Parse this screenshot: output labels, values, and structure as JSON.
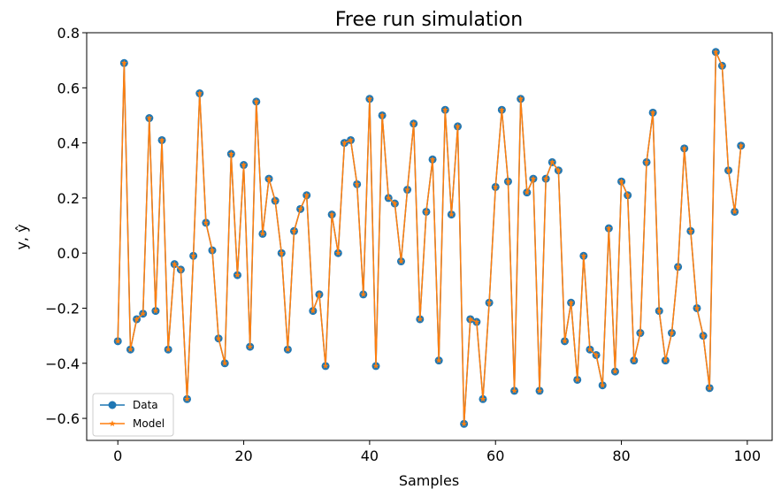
{
  "chart_data": {
    "type": "line",
    "title": "Free run simulation",
    "xlabel": "Samples",
    "ylabel": "y, ŷ",
    "xlim": [
      -4.95,
      103.95
    ],
    "ylim": [
      -0.68,
      0.8
    ],
    "xticks": [
      0,
      20,
      40,
      60,
      80,
      100
    ],
    "yticks": [
      -0.6,
      -0.4,
      -0.2,
      0.0,
      0.2,
      0.4,
      0.6,
      0.8
    ],
    "xtick_labels": [
      "0",
      "20",
      "40",
      "60",
      "80",
      "100"
    ],
    "ytick_labels": [
      "−0.6",
      "−0.4",
      "−0.2",
      "0.0",
      "0.2",
      "0.4",
      "0.6",
      "0.8"
    ],
    "grid": false,
    "legend_position": "lower-left",
    "x": [
      0,
      1,
      2,
      3,
      4,
      5,
      6,
      7,
      8,
      9,
      10,
      11,
      12,
      13,
      14,
      15,
      16,
      17,
      18,
      19,
      20,
      21,
      22,
      23,
      24,
      25,
      26,
      27,
      28,
      29,
      30,
      31,
      32,
      33,
      34,
      35,
      36,
      37,
      38,
      39,
      40,
      41,
      42,
      43,
      44,
      45,
      46,
      47,
      48,
      49,
      50,
      51,
      52,
      53,
      54,
      55,
      56,
      57,
      58,
      59,
      60,
      61,
      62,
      63,
      64,
      65,
      66,
      67,
      68,
      69,
      70,
      71,
      72,
      73,
      74,
      75,
      76,
      77,
      78,
      79,
      80,
      81,
      82,
      83,
      84,
      85,
      86,
      87,
      88,
      89,
      90,
      91,
      92,
      93,
      94,
      95,
      96,
      97,
      98,
      99
    ],
    "series": [
      {
        "name": "Data",
        "color": "#1f77b4",
        "marker": "circle",
        "values": [
          -0.32,
          0.69,
          -0.35,
          -0.24,
          -0.22,
          0.49,
          -0.21,
          0.41,
          -0.35,
          -0.04,
          -0.06,
          -0.53,
          -0.01,
          0.58,
          0.11,
          0.01,
          -0.31,
          -0.4,
          0.36,
          -0.08,
          0.32,
          -0.34,
          0.55,
          0.07,
          0.27,
          0.19,
          0.0,
          -0.35,
          0.08,
          0.16,
          0.21,
          -0.21,
          -0.15,
          -0.41,
          0.14,
          0.0,
          0.4,
          0.41,
          0.25,
          -0.15,
          0.56,
          -0.41,
          0.5,
          0.2,
          0.18,
          -0.03,
          0.23,
          0.47,
          -0.24,
          0.15,
          0.34,
          -0.39,
          0.52,
          0.14,
          0.46,
          -0.62,
          -0.24,
          -0.25,
          -0.53,
          -0.18,
          0.24,
          0.52,
          0.26,
          -0.5,
          0.56,
          0.22,
          0.27,
          -0.5,
          0.27,
          0.33,
          0.3,
          -0.32,
          -0.18,
          -0.46,
          -0.01,
          -0.35,
          -0.37,
          -0.48,
          0.09,
          -0.43,
          0.26,
          0.21,
          -0.39,
          -0.29,
          0.33,
          0.51,
          -0.21,
          -0.39,
          -0.29,
          -0.05,
          0.38,
          0.08,
          -0.2,
          -0.3,
          -0.49,
          0.73,
          0.68,
          0.3,
          0.15,
          0.39
        ]
      },
      {
        "name": "Model",
        "color": "#ff7f0e",
        "marker": "star",
        "values": [
          -0.32,
          0.69,
          -0.35,
          -0.24,
          -0.22,
          0.49,
          -0.21,
          0.41,
          -0.35,
          -0.04,
          -0.06,
          -0.53,
          -0.01,
          0.58,
          0.11,
          0.01,
          -0.31,
          -0.4,
          0.36,
          -0.08,
          0.32,
          -0.34,
          0.55,
          0.07,
          0.27,
          0.19,
          0.0,
          -0.35,
          0.08,
          0.16,
          0.21,
          -0.21,
          -0.15,
          -0.41,
          0.14,
          0.0,
          0.4,
          0.41,
          0.25,
          -0.15,
          0.56,
          -0.41,
          0.5,
          0.2,
          0.18,
          -0.03,
          0.23,
          0.47,
          -0.24,
          0.15,
          0.34,
          -0.39,
          0.52,
          0.14,
          0.46,
          -0.62,
          -0.24,
          -0.25,
          -0.53,
          -0.18,
          0.24,
          0.52,
          0.26,
          -0.5,
          0.56,
          0.22,
          0.27,
          -0.5,
          0.27,
          0.33,
          0.3,
          -0.32,
          -0.18,
          -0.46,
          -0.01,
          -0.35,
          -0.37,
          -0.48,
          0.09,
          -0.43,
          0.26,
          0.21,
          -0.39,
          -0.29,
          0.33,
          0.51,
          -0.21,
          -0.39,
          -0.29,
          -0.05,
          0.38,
          0.08,
          -0.2,
          -0.3,
          -0.49,
          0.73,
          0.68,
          0.3,
          0.15,
          0.39
        ]
      }
    ]
  }
}
